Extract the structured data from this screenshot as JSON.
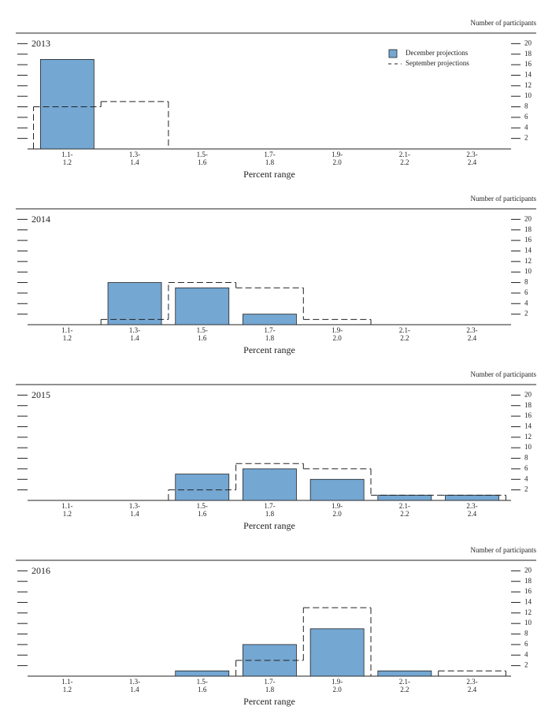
{
  "chart_data": [
    {
      "type": "bar",
      "title": "2013",
      "y_axis_label": "Number of participants",
      "x_label": "Percent range",
      "categories": [
        [
          "1.1-",
          "1.2"
        ],
        [
          "1.3-",
          "1.4"
        ],
        [
          "1.5-",
          "1.6"
        ],
        [
          "1.7-",
          "1.8"
        ],
        [
          "1.9-",
          "2.0"
        ],
        [
          "2.1-",
          "2.2"
        ],
        [
          "2.3-",
          "2.4"
        ]
      ],
      "series": [
        {
          "name": "December projections",
          "type": "bar",
          "color": "#74a7d2",
          "values": [
            17,
            0,
            0,
            0,
            0,
            0,
            0
          ]
        },
        {
          "name": "September projections",
          "type": "step",
          "color": "#0e6ba8",
          "values": [
            8,
            9,
            0,
            0,
            0,
            0,
            0
          ]
        }
      ],
      "ylim": [
        0,
        22
      ],
      "yticks": [
        2,
        4,
        6,
        8,
        10,
        12,
        14,
        16,
        18,
        20
      ],
      "legend": "upper right"
    },
    {
      "type": "bar",
      "title": "2014",
      "y_axis_label": "Number of participants",
      "x_label": "Percent range",
      "categories": [
        [
          "1.1-",
          "1.2"
        ],
        [
          "1.3-",
          "1.4"
        ],
        [
          "1.5-",
          "1.6"
        ],
        [
          "1.7-",
          "1.8"
        ],
        [
          "1.9-",
          "2.0"
        ],
        [
          "2.1-",
          "2.2"
        ],
        [
          "2.3-",
          "2.4"
        ]
      ],
      "series": [
        {
          "type": "bar",
          "color": "#74a7d2",
          "values": [
            0,
            8,
            7,
            2,
            0,
            0,
            0
          ]
        },
        {
          "type": "step",
          "color": "#0e6ba8",
          "values": [
            0,
            1,
            8,
            7,
            1,
            0,
            0
          ]
        }
      ],
      "ylim": [
        0,
        22
      ],
      "yticks": [
        2,
        4,
        6,
        8,
        10,
        12,
        14,
        16,
        18,
        20
      ]
    },
    {
      "type": "bar",
      "title": "2015",
      "y_axis_label": "Number of participants",
      "x_label": "Percent range",
      "categories": [
        [
          "1.1-",
          "1.2"
        ],
        [
          "1.3-",
          "1.4"
        ],
        [
          "1.5-",
          "1.6"
        ],
        [
          "1.7-",
          "1.8"
        ],
        [
          "1.9-",
          "2.0"
        ],
        [
          "2.1-",
          "2.2"
        ],
        [
          "2.3-",
          "2.4"
        ]
      ],
      "series": [
        {
          "type": "bar",
          "color": "#74a7d2",
          "values": [
            0,
            0,
            5,
            6,
            4,
            1,
            1
          ]
        },
        {
          "type": "step",
          "color": "#0e6ba8",
          "values": [
            0,
            0,
            2,
            7,
            6,
            1,
            1
          ]
        }
      ],
      "ylim": [
        0,
        22
      ],
      "yticks": [
        2,
        4,
        6,
        8,
        10,
        12,
        14,
        16,
        18,
        20
      ]
    },
    {
      "type": "bar",
      "title": "2016",
      "y_axis_label": "Number of participants",
      "x_label": "Percent range",
      "categories": [
        [
          "1.1-",
          "1.2"
        ],
        [
          "1.3-",
          "1.4"
        ],
        [
          "1.5-",
          "1.6"
        ],
        [
          "1.7-",
          "1.8"
        ],
        [
          "1.9-",
          "2.0"
        ],
        [
          "2.1-",
          "2.2"
        ],
        [
          "2.3-",
          "2.4"
        ]
      ],
      "series": [
        {
          "type": "bar",
          "color": "#74a7d2",
          "values": [
            0,
            0,
            1,
            6,
            9,
            1,
            0
          ]
        },
        {
          "type": "step",
          "color": "#0e6ba8",
          "values": [
            0,
            0,
            0,
            3,
            13,
            0,
            1
          ]
        }
      ],
      "ylim": [
        0,
        22
      ],
      "yticks": [
        2,
        4,
        6,
        8,
        10,
        12,
        14,
        16,
        18,
        20
      ]
    }
  ]
}
